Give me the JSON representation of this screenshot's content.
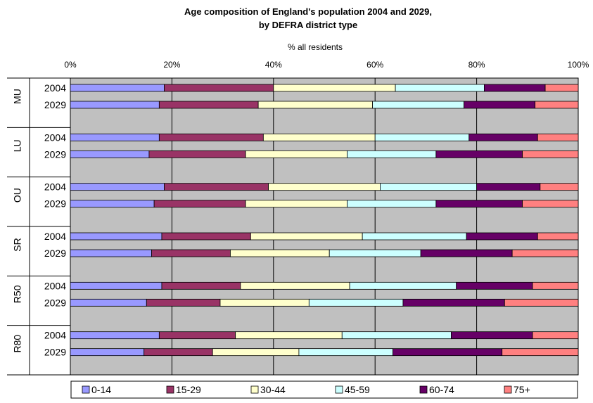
{
  "chart_data": {
    "type": "bar",
    "orientation": "horizontal",
    "stacked": "percent",
    "title": "Age composition of England's population 2004 and 2029,",
    "subtitle": "by DEFRA district type",
    "xlabel": "% all residents",
    "xlim": [
      0,
      100
    ],
    "xticks": [
      "0%",
      "20%",
      "40%",
      "60%",
      "80%",
      "100%"
    ],
    "grid": true,
    "legend_position": "bottom",
    "groups": [
      {
        "label": "MU",
        "rows": [
          {
            "year": "2004",
            "values": [
              18.5,
              21.5,
              24.0,
              17.5,
              12.0,
              6.5
            ]
          },
          {
            "year": "2029",
            "values": [
              17.5,
              19.5,
              22.5,
              18.0,
              14.0,
              8.5
            ]
          }
        ]
      },
      {
        "label": "LU",
        "rows": [
          {
            "year": "2004",
            "values": [
              17.5,
              20.5,
              22.0,
              18.5,
              13.5,
              8.0
            ]
          },
          {
            "year": "2029",
            "values": [
              15.5,
              19.0,
              20.0,
              17.5,
              17.0,
              11.0
            ]
          }
        ]
      },
      {
        "label": "OU",
        "rows": [
          {
            "year": "2004",
            "values": [
              18.5,
              20.5,
              22.0,
              19.0,
              12.5,
              7.5
            ]
          },
          {
            "year": "2029",
            "values": [
              16.5,
              18.0,
              20.0,
              17.5,
              17.0,
              11.0
            ]
          }
        ]
      },
      {
        "label": "SR",
        "rows": [
          {
            "year": "2004",
            "values": [
              18.0,
              17.5,
              22.0,
              20.5,
              14.0,
              8.0
            ]
          },
          {
            "year": "2029",
            "values": [
              16.0,
              15.5,
              19.5,
              18.0,
              18.0,
              13.0
            ]
          }
        ]
      },
      {
        "label": "R50",
        "rows": [
          {
            "year": "2004",
            "values": [
              18.0,
              15.5,
              21.5,
              21.0,
              15.0,
              9.0
            ]
          },
          {
            "year": "2029",
            "values": [
              15.0,
              14.5,
              17.5,
              18.5,
              20.0,
              14.5
            ]
          }
        ]
      },
      {
        "label": "R80",
        "rows": [
          {
            "year": "2004",
            "values": [
              17.5,
              15.0,
              21.0,
              21.5,
              16.0,
              9.0
            ]
          },
          {
            "year": "2029",
            "values": [
              14.5,
              13.5,
              17.0,
              18.5,
              21.5,
              15.0
            ]
          }
        ]
      }
    ],
    "series": [
      {
        "name": "0-14",
        "color": "#9999ff"
      },
      {
        "name": "15-29",
        "color": "#993366"
      },
      {
        "name": "30-44",
        "color": "#ffffcc"
      },
      {
        "name": "45-59",
        "color": "#ccffff"
      },
      {
        "name": "60-74",
        "color": "#660066"
      },
      {
        "name": "75+",
        "color": "#ff8080"
      }
    ],
    "colors": {
      "plot_background": "#c0c0c0",
      "gridline": "#000000",
      "background": "#ffffff"
    }
  }
}
